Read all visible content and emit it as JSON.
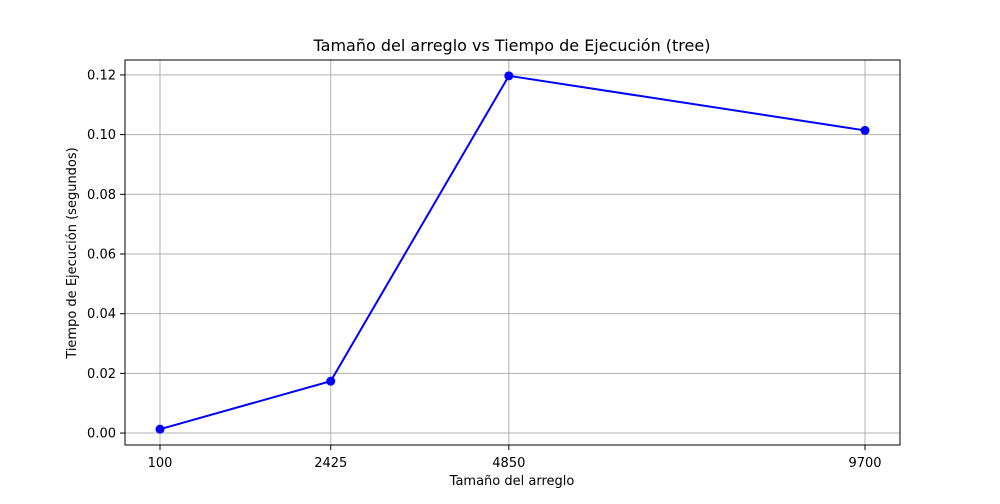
{
  "chart_data": {
    "type": "line",
    "title": "Tamaño del arreglo vs Tiempo de Ejecución (tree)",
    "xlabel": "Tamaño del arreglo",
    "ylabel": "Tiempo de Ejecución (segundos)",
    "x": [
      100,
      2425,
      4850,
      9700
    ],
    "x_tick_labels": [
      "100",
      "2425",
      "4850",
      "9700"
    ],
    "y_ticks": [
      0.0,
      0.02,
      0.04,
      0.06,
      0.08,
      0.1,
      0.12
    ],
    "y_tick_labels": [
      "0.00",
      "0.02",
      "0.04",
      "0.06",
      "0.08",
      "0.10",
      "0.12"
    ],
    "ylim": [
      -0.004,
      0.125
    ],
    "grid": true,
    "series": [
      {
        "values": [
          0.0013,
          0.0174,
          0.1197,
          0.1014
        ],
        "color": "#0000ff",
        "marker": "circle"
      }
    ]
  }
}
